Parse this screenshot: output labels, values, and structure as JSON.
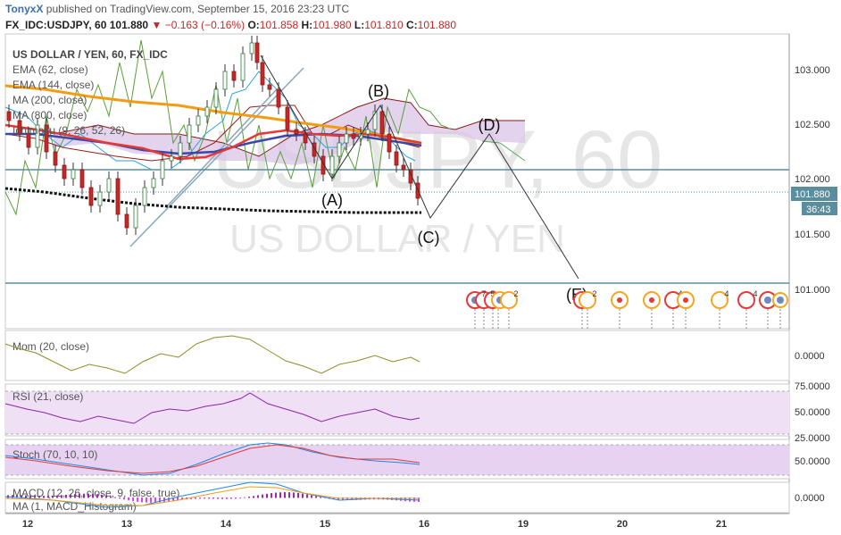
{
  "header": {
    "user": "TonyxX",
    "published_text": "published on TradingView.com, September 15, 2016 23:23 UTC",
    "symbol": "FX_IDC:USDJPY, 60",
    "last": "101.880",
    "change": "−0.163 (−0.16%)",
    "open_label": "O:",
    "open": "101.858",
    "high_label": "H:",
    "high": "101.980",
    "low_label": "L:",
    "low": "101.810",
    "close_label": "C:",
    "close": "101.880"
  },
  "legend": {
    "title": "US DOLLAR / YEN, 60, FX_IDC",
    "lines": [
      "EMA (62, close)",
      "EMA (144, close)",
      "MA (200, close)",
      "MA (800, close)",
      "Ichimoku (9, 26, 52, 26)"
    ]
  },
  "watermark": {
    "big": "USDJPY, 60",
    "sub": "US DOLLAR / YEN"
  },
  "wave_labels": [
    "(A)",
    "(B)",
    "(C)",
    "(D)",
    "(E)"
  ],
  "price_axis": {
    "ticks": [
      "103.000",
      "102.500",
      "102.000",
      "101.500",
      "101.000"
    ],
    "current_price": "101.880",
    "countdown": "36:43"
  },
  "time_axis": {
    "ticks": [
      "12",
      "13",
      "14",
      "15",
      "16",
      "19",
      "20",
      "21"
    ]
  },
  "event_counts": [
    "7",
    "5",
    "2",
    "2",
    "4",
    "4",
    "4"
  ],
  "panes": {
    "mom": {
      "label": "Mom (20, close)",
      "ticks": [
        "0.0000"
      ]
    },
    "rsi": {
      "label": "RSI (21, close)",
      "ticks": [
        "75.0000",
        "50.0000",
        "25.0000"
      ]
    },
    "stoch": {
      "label": "Stoch (70, 10, 10)",
      "ticks": [
        "50.0000"
      ]
    },
    "macd": {
      "label1": "MACD (12, 26, close, 9, false, true)",
      "label2": "MA (1, MACD_Histogram)",
      "ticks": [
        "0.0000"
      ]
    }
  },
  "colors": {
    "ema62": "#f39c12",
    "ema144": "#e53935",
    "ma200": "#3949ab",
    "ma800": "#000000",
    "kumo": "#d9c4e6",
    "rsi": "#8e24aa",
    "mom": "#8d8d2a",
    "stoch_k": "#1e88e5",
    "stoch_d": "#e53935",
    "pane_fill": "#efe0f5",
    "hline": "#5a8d9e"
  }
}
